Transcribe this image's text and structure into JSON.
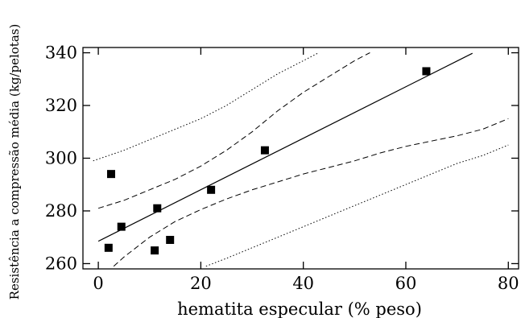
{
  "chart_data": {
    "type": "scatter",
    "xlabel": "hematita especular (% peso)",
    "ylabel": "Resistência a compressão média (kg/pelotas)",
    "xlim": [
      -3,
      82
    ],
    "ylim": [
      258,
      342
    ],
    "xticks": [
      0,
      20,
      40,
      60,
      80
    ],
    "yticks": [
      260,
      280,
      300,
      320,
      340
    ],
    "grid": false,
    "points": [
      {
        "x": 2,
        "y": 266
      },
      {
        "x": 2.5,
        "y": 294
      },
      {
        "x": 4.5,
        "y": 274
      },
      {
        "x": 11,
        "y": 265
      },
      {
        "x": 11.5,
        "y": 281
      },
      {
        "x": 14,
        "y": 269
      },
      {
        "x": 22,
        "y": 288
      },
      {
        "x": 32.5,
        "y": 303
      },
      {
        "x": 64,
        "y": 333
      }
    ],
    "regression": {
      "x": [
        0,
        73
      ],
      "y": [
        268.5,
        339.8
      ]
    },
    "confidence_band": {
      "upper": [
        [
          0,
          281
        ],
        [
          5,
          284
        ],
        [
          10,
          288
        ],
        [
          15,
          292
        ],
        [
          20,
          297
        ],
        [
          25,
          303
        ],
        [
          30,
          310
        ],
        [
          35,
          318
        ],
        [
          40,
          325
        ],
        [
          45,
          331
        ],
        [
          50,
          337
        ],
        [
          53,
          340
        ]
      ],
      "lower": [
        [
          3,
          259
        ],
        [
          5,
          262.5
        ],
        [
          10,
          270
        ],
        [
          15,
          276
        ],
        [
          20,
          280.5
        ],
        [
          25,
          284.5
        ],
        [
          30,
          288
        ],
        [
          35,
          291
        ],
        [
          40,
          294
        ],
        [
          45,
          296.5
        ],
        [
          50,
          299
        ],
        [
          55,
          302
        ],
        [
          60,
          304.5
        ],
        [
          65,
          306.5
        ],
        [
          70,
          308.5
        ],
        [
          75,
          311
        ],
        [
          80,
          315
        ]
      ]
    },
    "prediction_band": {
      "upper": [
        [
          -1,
          299
        ],
        [
          5,
          303
        ],
        [
          10,
          307
        ],
        [
          15,
          311
        ],
        [
          20,
          315
        ],
        [
          25,
          320
        ],
        [
          30,
          326
        ],
        [
          35,
          332
        ],
        [
          40,
          337
        ],
        [
          43,
          340
        ]
      ],
      "lower": [
        [
          21,
          259
        ],
        [
          25,
          262
        ],
        [
          30,
          266
        ],
        [
          35,
          270
        ],
        [
          40,
          274
        ],
        [
          45,
          278
        ],
        [
          50,
          282
        ],
        [
          55,
          286
        ],
        [
          60,
          290
        ],
        [
          65,
          294
        ],
        [
          70,
          298
        ],
        [
          75,
          301
        ],
        [
          80,
          305
        ]
      ]
    }
  }
}
